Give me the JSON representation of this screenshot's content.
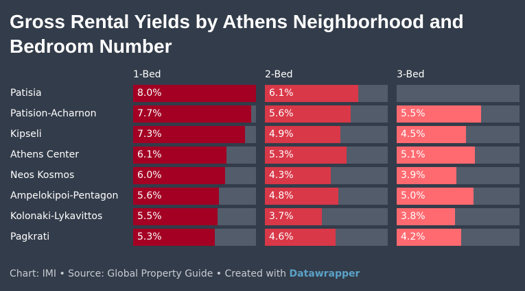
{
  "title": "Gross Rental Yields by Athens Neighborhood and Bedroom Number",
  "footer": {
    "chart_credit": "Chart: IMI",
    "separator": "•",
    "source": "Source: Global Property Guide",
    "created_with": "Created with",
    "brand": "Datawrapper"
  },
  "colors": {
    "background": "#333c4a",
    "track": "#535c6a",
    "bed1": "#a30023",
    "bed2": "#d93848",
    "bed3": "#ff6a70"
  },
  "chart_data": {
    "type": "bar",
    "orientation": "horizontal",
    "layout": "small-multiples",
    "value_max": 8.0,
    "value_unit": "%",
    "categories": [
      "Patisia",
      "Patision-Acharnon",
      "Kipseli",
      "Athens Center",
      "Neos Kosmos",
      "Ampelokipoi-Pentagon",
      "Kolonaki-Lykavittos",
      "Pagkrati"
    ],
    "series": [
      {
        "name": "1-Bed",
        "color": "#a30023",
        "values": [
          8.0,
          7.7,
          7.3,
          6.1,
          6.0,
          5.6,
          5.5,
          5.3
        ],
        "labels": [
          "8.0%",
          "7.7%",
          "7.3%",
          "6.1%",
          "6.0%",
          "5.6%",
          "5.5%",
          "5.3%"
        ]
      },
      {
        "name": "2-Bed",
        "color": "#d93848",
        "values": [
          6.1,
          5.6,
          4.9,
          5.3,
          4.3,
          4.8,
          3.7,
          4.6
        ],
        "labels": [
          "6.1%",
          "5.6%",
          "4.9%",
          "5.3%",
          "4.3%",
          "4.8%",
          "3.7%",
          "4.6%"
        ]
      },
      {
        "name": "3-Bed",
        "color": "#ff6a70",
        "values": [
          null,
          5.5,
          4.5,
          5.1,
          3.9,
          5.0,
          3.8,
          4.2
        ],
        "labels": [
          "",
          "5.5%",
          "4.5%",
          "5.1%",
          "3.9%",
          "5.0%",
          "3.8%",
          "4.2%"
        ]
      }
    ]
  }
}
